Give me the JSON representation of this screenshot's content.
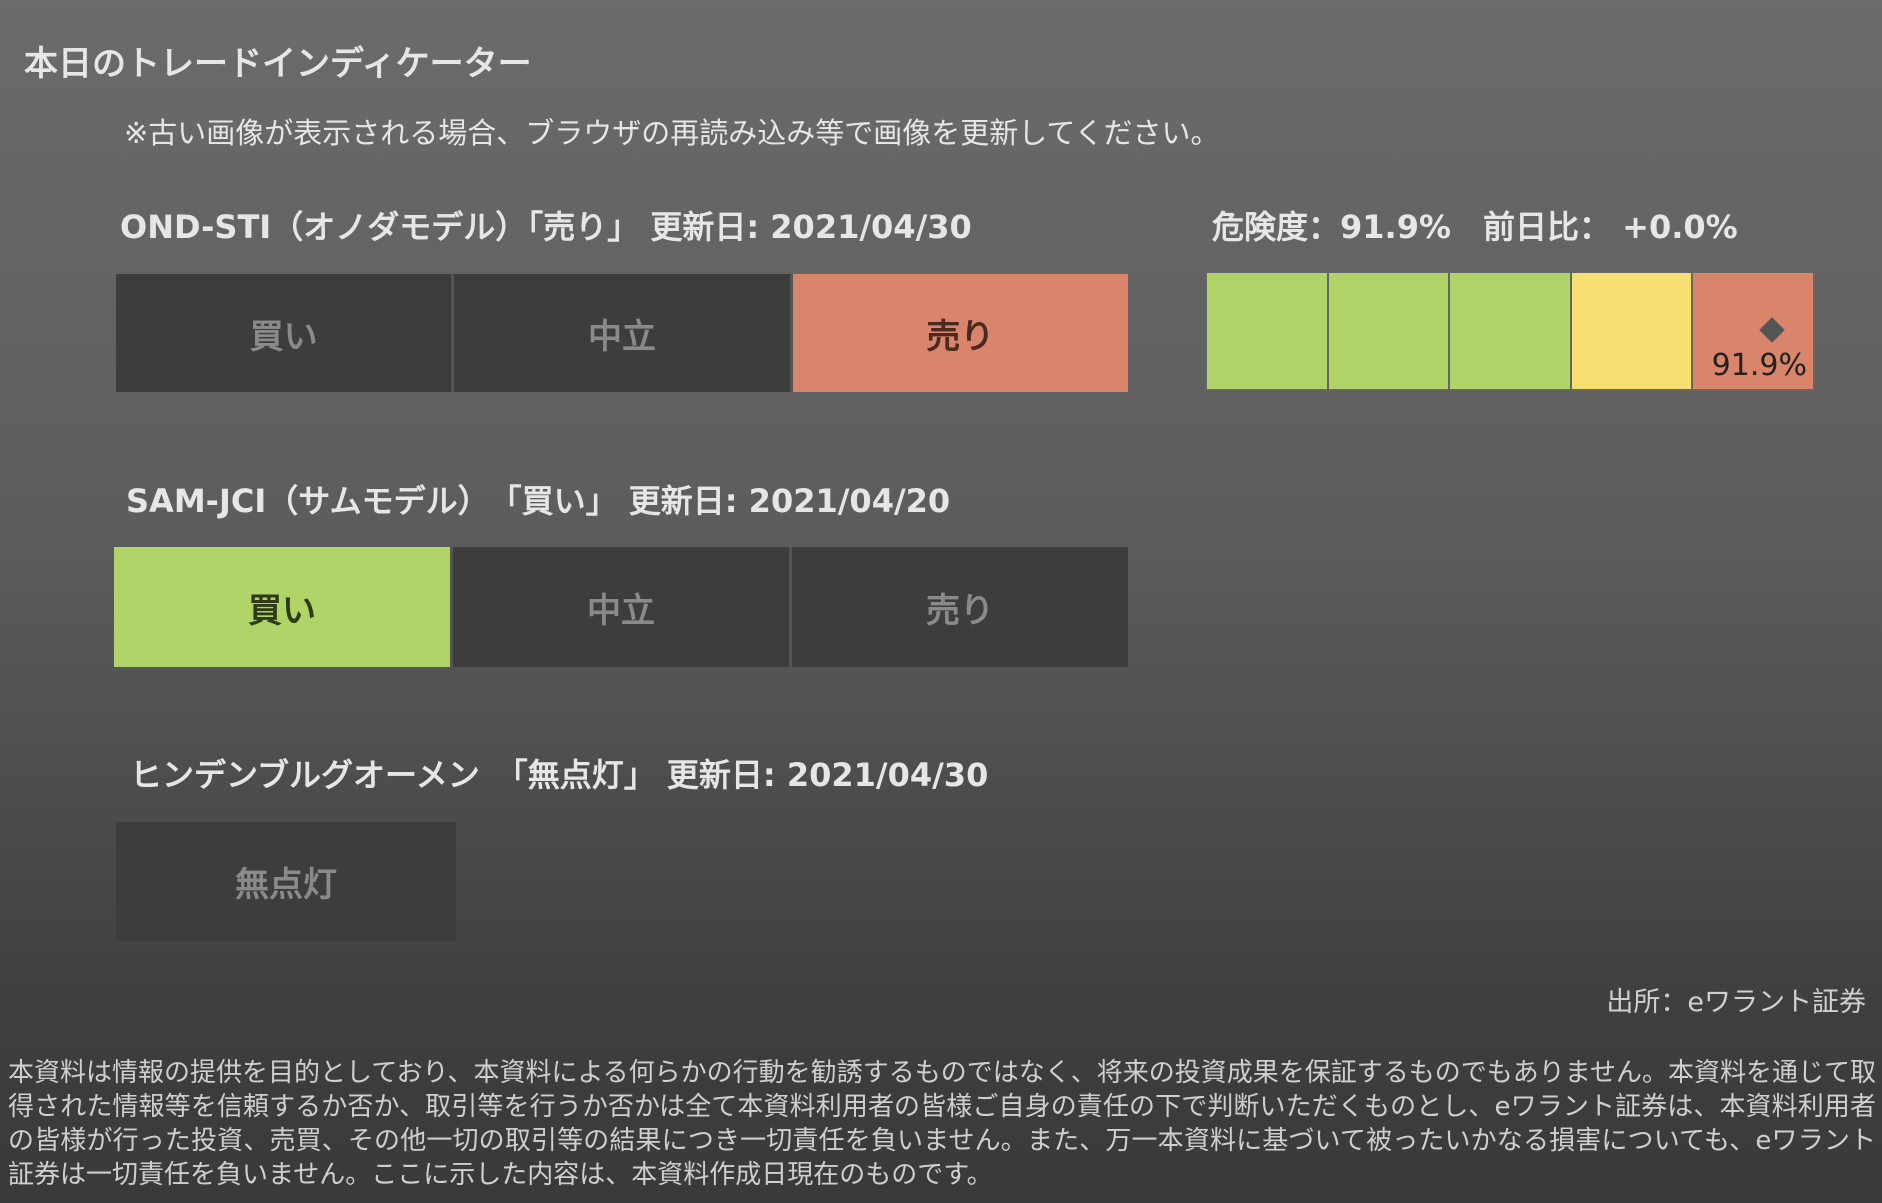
{
  "title": "本日のトレードインディケーター",
  "note": "※古い画像が表示される場合、ブラウザの再読み込み等で画像を更新してください。",
  "ond": {
    "label": "OND-STI（オノダモデル）「売り」 更新日: 2021/04/30",
    "segments": [
      "買い",
      "中立",
      "売り"
    ],
    "active": "売り"
  },
  "risk": {
    "label": "危険度：91.9%　前日比： +0.0%",
    "value_percent": 91.9,
    "marker_label": "91.9%",
    "colors": [
      "#b0d468",
      "#b0d468",
      "#b0d468",
      "#f7e070",
      "#d9856b"
    ]
  },
  "sam": {
    "label": "SAM-JCI（サムモデル）　「買い」 更新日: 2021/04/20",
    "segments": [
      "買い",
      "中立",
      "売り"
    ],
    "active": "買い"
  },
  "hind": {
    "label": "ヒンデンブルグオーメン　「無点灯」 更新日: 2021/04/30",
    "segment": "無点灯"
  },
  "source": "出所：eワラント証券",
  "disclaimer": "本資料は情報の提供を目的としており、本資料による何らかの行動を勧誘するものではなく、将来の投資成果を保証するものでもありません。本資料を通じて取得された情報等を信頼するか否か、取引等を行うか否かは全て本資料利用者の皆様ご自身の責任の下で判断いただくものとし、eワラント証券は、本資料利用者の皆様が行った投資、売買、その他一切の取引等の結果につき一切責任を負いません。また、万一本資料に基づいて被ったいかなる損害についても、eワラント証券は一切責任を負いません。ここに示した内容は、本資料作成日現在のものです。"
}
